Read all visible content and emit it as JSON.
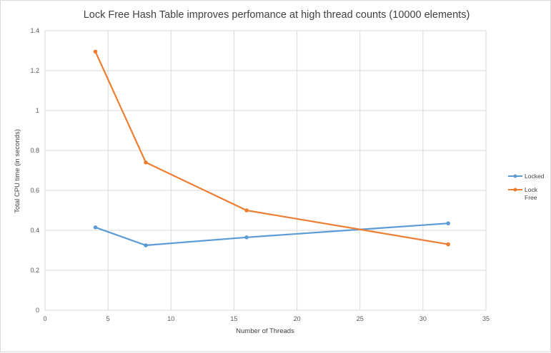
{
  "chart_data": {
    "type": "line",
    "title": "Lock Free Hash Table improves perfomance at high thread counts (10000 elements)",
    "xlabel": "Number of Threads",
    "ylabel": "Total CPU time (in seconds)",
    "xlim": [
      0,
      35
    ],
    "ylim": [
      0,
      1.4
    ],
    "x_ticks": [
      "0",
      "5",
      "10",
      "15",
      "20",
      "25",
      "30",
      "35"
    ],
    "y_ticks": [
      "0",
      "0.2",
      "0.4",
      "0.6",
      "0.8",
      "1",
      "1.2",
      "1.4"
    ],
    "grid": true,
    "legend_position": "right",
    "series": [
      {
        "name": "Locked",
        "color": "#5b9bd5",
        "x": [
          4,
          8,
          16,
          32
        ],
        "y": [
          0.415,
          0.325,
          0.365,
          0.435
        ]
      },
      {
        "name": "Lock Free",
        "legend_lines": [
          "Lock",
          "Free"
        ],
        "color": "#ed7d31",
        "x": [
          4,
          8,
          16,
          32
        ],
        "y": [
          1.295,
          0.74,
          0.5,
          0.33
        ]
      }
    ]
  }
}
